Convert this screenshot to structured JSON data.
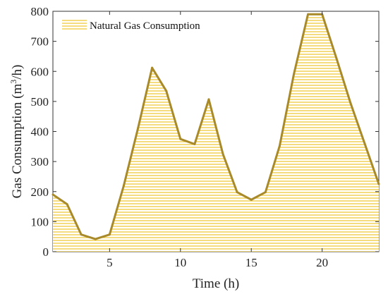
{
  "chart_data": {
    "type": "area",
    "title": "",
    "xlabel": "Time (h)",
    "ylabel_main": "Gas Consumption (m",
    "ylabel_sup": "3",
    "ylabel_end": "/h)",
    "xlim": [
      1,
      24
    ],
    "ylim": [
      0,
      800
    ],
    "xticks": [
      5,
      10,
      15,
      20
    ],
    "yticks": [
      0,
      100,
      200,
      300,
      400,
      500,
      600,
      700,
      800
    ],
    "legend_position": "top-left",
    "grid": false,
    "series": [
      {
        "name": "Natural Gas Consumption",
        "color": "#a88a2a",
        "fill_color": "#f0c93a",
        "x": [
          1,
          2,
          3,
          4,
          5,
          6,
          7,
          8,
          9,
          10,
          11,
          12,
          13,
          14,
          15,
          16,
          17,
          18,
          19,
          20,
          21,
          22,
          23,
          24
        ],
        "y": [
          190,
          158,
          57,
          42,
          57,
          220,
          410,
          612,
          535,
          375,
          358,
          507,
          325,
          198,
          173,
          198,
          352,
          590,
          790,
          790,
          645,
          495,
          360,
          225
        ]
      }
    ]
  }
}
